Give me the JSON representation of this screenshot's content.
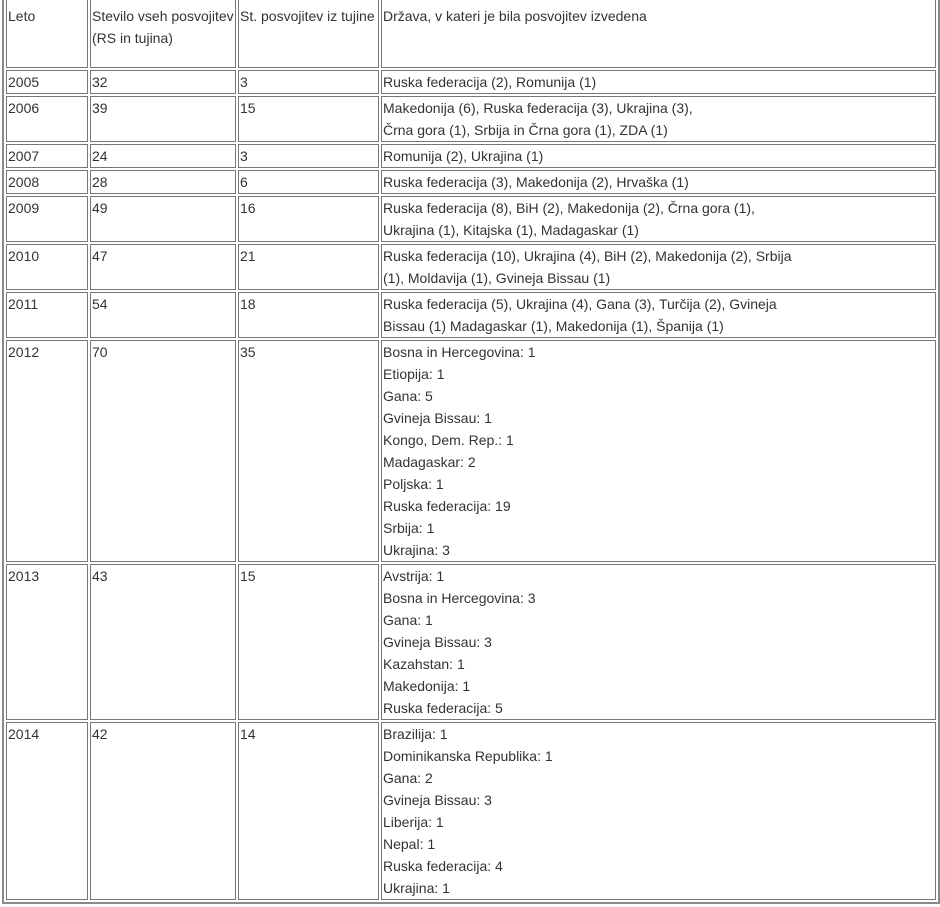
{
  "headers": [
    "Leto",
    "Stevilo vseh posvojitev (RS in tujina)",
    "St. posvojitev iz tujine",
    "Država, v kateri je bila posvojitev izvedena"
  ],
  "rows": [
    {
      "year": "2005",
      "total": "32",
      "foreign": "3",
      "countries": [
        "Ruska federacija (2), Romunija (1)"
      ]
    },
    {
      "year": "2006",
      "total": "39",
      "foreign": "15",
      "countries": [
        "Makedonija (6), Ruska federacija (3), Ukrajina (3),",
        "Črna gora (1), Srbija in Črna gora (1), ZDA (1)"
      ]
    },
    {
      "year": "2007",
      "total": "24",
      "foreign": "3",
      "countries": [
        "Romunija (2), Ukrajina (1)"
      ]
    },
    {
      "year": "2008",
      "total": "28",
      "foreign": "6",
      "countries": [
        "Ruska federacija (3), Makedonija (2), Hrvaška (1)"
      ]
    },
    {
      "year": "2009",
      "total": "49",
      "foreign": "16",
      "countries": [
        "Ruska federacija (8), BiH (2), Makedonija (2), Črna gora (1),",
        "Ukrajina (1), Kitajska (1), Madagaskar (1)"
      ]
    },
    {
      "year": "2010",
      "total": "47",
      "foreign": "21",
      "countries": [
        "Ruska federacija (10), Ukrajina (4), BiH (2), Makedonija (2), Srbija",
        "(1), Moldavija (1), Gvineja Bissau (1)"
      ]
    },
    {
      "year": "2011",
      "total": "54",
      "foreign": "18",
      "countries": [
        "Ruska federacija (5), Ukrajina (4), Gana (3), Turčija (2), Gvineja",
        "Bissau (1) Madagaskar (1), Makedonija (1), Španija (1)"
      ]
    },
    {
      "year": "2012",
      "total": "70",
      "foreign": "35",
      "countries": [
        "Bosna in Hercegovina: 1",
        "Etiopija: 1",
        "Gana: 5",
        "Gvineja Bissau: 1",
        "Kongo, Dem. Rep.: 1",
        "Madagaskar: 2",
        "Poljska: 1",
        "Ruska federacija: 19",
        "Srbija: 1",
        "Ukrajina: 3"
      ]
    },
    {
      "year": "2013",
      "total": "43",
      "foreign": "15",
      "countries": [
        "Avstrija: 1",
        "Bosna in Hercegovina: 3",
        "Gana: 1",
        "Gvineja Bissau: 3",
        "Kazahstan: 1",
        "Makedonija: 1",
        "Ruska federacija: 5"
      ]
    },
    {
      "year": "2014",
      "total": "42",
      "foreign": "14",
      "countries": [
        "Brazilija: 1",
        "Dominikanska Republika: 1",
        "Gana: 2",
        "Gvineja Bissau: 3",
        "Liberija: 1",
        "Nepal: 1",
        "Ruska federacija: 4",
        "Ukrajina: 1"
      ]
    }
  ]
}
